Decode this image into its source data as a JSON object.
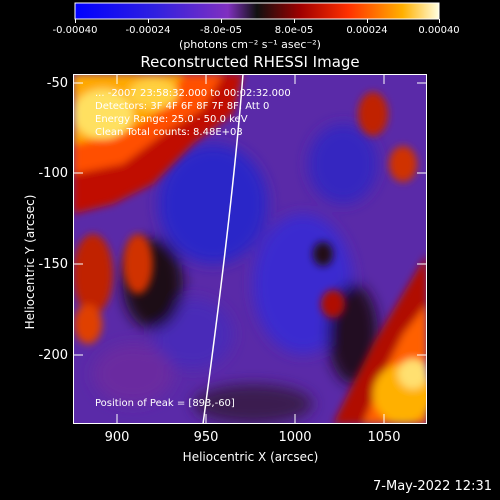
{
  "colorbar": {
    "ticks": [
      "-0.00040",
      "-0.00024",
      "-8.0e-05",
      "8.0e-05",
      "0.00024",
      "0.00040"
    ],
    "units": "(photons cm⁻² s⁻¹ asec⁻²)"
  },
  "title": "Reconstructed RHESSI Image",
  "info": {
    "line1": "... -2007 23:58:32.000 to 00:02:32.000",
    "line2": "Detectors: 3F 4F 6F 8F 7F 8F, Att 0",
    "line3": "Energy Range: 25.0 - 50.0 keV",
    "line4": "Clean     Total counts: 8.48E+03",
    "peak": "Position of Peak = [893,-60]"
  },
  "axes": {
    "xlabel": "Heliocentric X (arcsec)",
    "ylabel": "Heliocentric Y (arcsec)",
    "xticks": [
      "900",
      "950",
      "1000",
      "1050"
    ],
    "yticks": [
      "-50",
      "-100",
      "-150",
      "-200"
    ]
  },
  "timestamp": "7-May-2022 12:31"
}
